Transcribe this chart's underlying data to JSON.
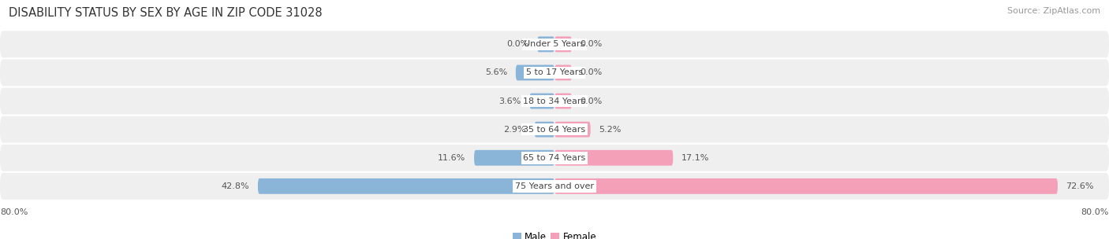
{
  "title": "DISABILITY STATUS BY SEX BY AGE IN ZIP CODE 31028",
  "source": "Source: ZipAtlas.com",
  "categories": [
    "Under 5 Years",
    "5 to 17 Years",
    "18 to 34 Years",
    "35 to 64 Years",
    "65 to 74 Years",
    "75 Years and over"
  ],
  "male_values": [
    0.0,
    5.6,
    3.6,
    2.9,
    11.6,
    42.8
  ],
  "female_values": [
    0.0,
    0.0,
    0.0,
    5.2,
    17.1,
    72.6
  ],
  "male_color": "#8ab4d8",
  "female_color": "#f4a0b8",
  "row_bg_color": "#efefef",
  "max_val": 80.0,
  "x_left_label": "80.0%",
  "x_right_label": "80.0%",
  "title_fontsize": 10.5,
  "source_fontsize": 8,
  "value_fontsize": 8,
  "category_fontsize": 8,
  "legend_fontsize": 8.5,
  "min_stub": 2.5
}
